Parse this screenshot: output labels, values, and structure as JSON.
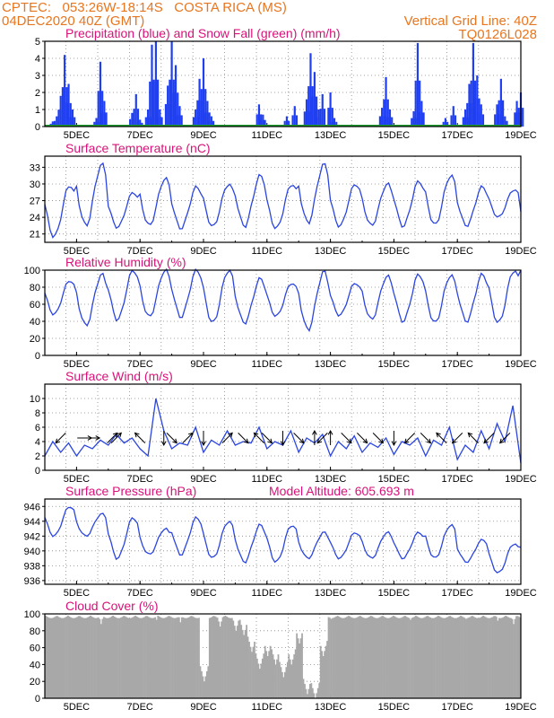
{
  "header": {
    "station_line": "CPTEC:   053:26W-18:14S   COSTA RICA (MS)",
    "date_line": "04DEC2020 40Z (GMT)",
    "grid_note": "Vertical Grid Line: 40Z",
    "code": "TQ0126L028"
  },
  "colors": {
    "header": "#e8761f",
    "titles": "#d8127a",
    "precip": "#1f3ff0",
    "snow": "#1e9e2e",
    "series": "#2b45e0",
    "cloud": "#a8a8a8",
    "wind_arrow": "#000000"
  },
  "x_axis": {
    "start": "2020-12-04 00Z",
    "end": "2020-12-19 00Z",
    "tick_labels": [
      "5DEC",
      "7DEC",
      "9DEC",
      "11DEC",
      "13DEC",
      "15DEC",
      "17DEC",
      "19DEC"
    ]
  },
  "chart_data": [
    {
      "type": "bar",
      "title": "Precipitation (blue) and Snow Fall (green) (mm/h)",
      "ylim": [
        0,
        5
      ],
      "y_ticks": [
        0,
        1,
        2,
        3,
        4,
        5
      ],
      "grid": true,
      "series": [
        {
          "name": "Precipitation",
          "points": [
            [
              "2020-12-04 06Z",
              0.3
            ],
            [
              "2020-12-04 09Z",
              0.6
            ],
            [
              "2020-12-04 12Z",
              1.8
            ],
            [
              "2020-12-04 15Z",
              4.2
            ],
            [
              "2020-12-04 18Z",
              2.5
            ],
            [
              "2020-12-04 21Z",
              1.0
            ],
            [
              "2020-12-05 15Z",
              0.5
            ],
            [
              "2020-12-05 18Z",
              3.8
            ],
            [
              "2020-12-05 21Z",
              1.5
            ],
            [
              "2020-12-06 18Z",
              0.8
            ],
            [
              "2020-12-06 21Z",
              1.9
            ],
            [
              "2020-12-07 00Z",
              0.4
            ],
            [
              "2020-12-07 06Z",
              1.0
            ],
            [
              "2020-12-07 09Z",
              4.8
            ],
            [
              "2020-12-07 12Z",
              5.0
            ],
            [
              "2020-12-07 15Z",
              1.0
            ],
            [
              "2020-12-07 21Z",
              2.4
            ],
            [
              "2020-12-08 00Z",
              5.0
            ],
            [
              "2020-12-08 03Z",
              3.6
            ],
            [
              "2020-12-08 06Z",
              1.2
            ],
            [
              "2020-12-08 18Z",
              1.0
            ],
            [
              "2020-12-08 21Z",
              2.8
            ],
            [
              "2020-12-09 00Z",
              4.0
            ],
            [
              "2020-12-09 03Z",
              1.5
            ],
            [
              "2020-12-09 06Z",
              0.6
            ],
            [
              "2020-12-10 18Z",
              1.3
            ],
            [
              "2020-12-10 21Z",
              0.7
            ],
            [
              "2020-12-11 15Z",
              0.6
            ],
            [
              "2020-12-11 21Z",
              1.2
            ],
            [
              "2020-12-12 06Z",
              1.6
            ],
            [
              "2020-12-12 09Z",
              4.3
            ],
            [
              "2020-12-12 12Z",
              3.2
            ],
            [
              "2020-12-12 15Z",
              1.0
            ],
            [
              "2020-12-12 18Z",
              1.9
            ],
            [
              "2020-12-13 00Z",
              2.0
            ],
            [
              "2020-12-13 03Z",
              0.5
            ],
            [
              "2020-12-14 15Z",
              1.1
            ],
            [
              "2020-12-14 18Z",
              2.9
            ],
            [
              "2020-12-14 21Z",
              1.0
            ],
            [
              "2020-12-15 15Z",
              0.9
            ],
            [
              "2020-12-15 18Z",
              4.9
            ],
            [
              "2020-12-15 21Z",
              1.5
            ],
            [
              "2020-12-16 15Z",
              0.5
            ],
            [
              "2020-12-16 21Z",
              1.2
            ],
            [
              "2020-12-17 06Z",
              1.0
            ],
            [
              "2020-12-17 09Z",
              2.5
            ],
            [
              "2020-12-17 12Z",
              4.9
            ],
            [
              "2020-12-17 15Z",
              3.0
            ],
            [
              "2020-12-17 18Z",
              1.3
            ],
            [
              "2020-12-18 06Z",
              1.3
            ],
            [
              "2020-12-18 09Z",
              2.8
            ],
            [
              "2020-12-18 12Z",
              0.6
            ],
            [
              "2020-12-18 21Z",
              1.5
            ],
            [
              "2020-12-19 00Z",
              2.0
            ]
          ]
        },
        {
          "name": "Snow Fall",
          "constant": 0
        }
      ]
    },
    {
      "type": "line",
      "title": "Surface Temperature (nC)",
      "ylim": [
        19.5,
        35
      ],
      "y_ticks": [
        21,
        24,
        27,
        30,
        33
      ],
      "grid": true,
      "daily_min": [
        20.5,
        22.5,
        22.2,
        22.5,
        22.0,
        22.3,
        22.4,
        22.0,
        23.0,
        22.4,
        22.5,
        22.4,
        22.6,
        22.5,
        24.0
      ],
      "daily_max": [
        29.8,
        33.5,
        28.5,
        31.0,
        29.5,
        30.0,
        31.5,
        30.0,
        33.5,
        30.0,
        30.0,
        30.5,
        31.5,
        29.5,
        29.0
      ],
      "end_value": 25.0
    },
    {
      "type": "line",
      "title": "Relative Humidity (%)",
      "ylim": [
        0,
        100
      ],
      "y_ticks": [
        0,
        20,
        40,
        60,
        80,
        100
      ],
      "grid": true,
      "daily_min": [
        48,
        35,
        42,
        45,
        45,
        38,
        38,
        46,
        30,
        47,
        42,
        40,
        38,
        40,
        38
      ],
      "daily_max": [
        88,
        95,
        100,
        100,
        100,
        100,
        90,
        85,
        98,
        85,
        93,
        95,
        94,
        95,
        100
      ],
      "end_value": 100
    },
    {
      "type": "line",
      "title": "Surface Wind (m/s)",
      "ylim": [
        0,
        12
      ],
      "y_ticks": [
        0,
        2,
        4,
        6,
        8,
        10
      ],
      "grid": true,
      "points": [
        [
          "2020-12-04 00Z",
          2.0
        ],
        [
          "2020-12-04 06Z",
          4.0
        ],
        [
          "2020-12-04 12Z",
          2.5
        ],
        [
          "2020-12-04 18Z",
          3.8
        ],
        [
          "2020-12-05 00Z",
          2.0
        ],
        [
          "2020-12-05 06Z",
          3.5
        ],
        [
          "2020-12-05 12Z",
          3.0
        ],
        [
          "2020-12-05 18Z",
          4.2
        ],
        [
          "2020-12-06 00Z",
          3.5
        ],
        [
          "2020-12-06 06Z",
          5.0
        ],
        [
          "2020-12-06 12Z",
          3.8
        ],
        [
          "2020-12-06 18Z",
          4.5
        ],
        [
          "2020-12-07 00Z",
          3.0
        ],
        [
          "2020-12-07 06Z",
          2.0
        ],
        [
          "2020-12-07 09Z",
          6.0
        ],
        [
          "2020-12-07 12Z",
          10.0
        ],
        [
          "2020-12-07 18Z",
          5.5
        ],
        [
          "2020-12-08 00Z",
          3.0
        ],
        [
          "2020-12-08 06Z",
          3.8
        ],
        [
          "2020-12-08 12Z",
          3.5
        ],
        [
          "2020-12-08 18Z",
          6.0
        ],
        [
          "2020-12-09 00Z",
          2.5
        ],
        [
          "2020-12-09 06Z",
          4.2
        ],
        [
          "2020-12-09 12Z",
          3.5
        ],
        [
          "2020-12-09 18Z",
          5.5
        ],
        [
          "2020-12-10 00Z",
          3.5
        ],
        [
          "2020-12-10 06Z",
          4.0
        ],
        [
          "2020-12-10 12Z",
          3.8
        ],
        [
          "2020-12-10 18Z",
          6.0
        ],
        [
          "2020-12-11 00Z",
          3.0
        ],
        [
          "2020-12-11 06Z",
          4.0
        ],
        [
          "2020-12-11 12Z",
          3.5
        ],
        [
          "2020-12-11 18Z",
          5.5
        ],
        [
          "2020-12-12 00Z",
          2.5
        ],
        [
          "2020-12-12 06Z",
          4.5
        ],
        [
          "2020-12-12 12Z",
          3.8
        ],
        [
          "2020-12-12 18Z",
          5.0
        ],
        [
          "2020-12-13 00Z",
          2.0
        ],
        [
          "2020-12-13 06Z",
          4.0
        ],
        [
          "2020-12-13 12Z",
          3.0
        ],
        [
          "2020-12-13 18Z",
          4.8
        ],
        [
          "2020-12-14 00Z",
          2.5
        ],
        [
          "2020-12-14 06Z",
          3.8
        ],
        [
          "2020-12-14 12Z",
          3.2
        ],
        [
          "2020-12-14 18Z",
          4.5
        ],
        [
          "2020-12-15 00Z",
          2.2
        ],
        [
          "2020-12-15 06Z",
          4.0
        ],
        [
          "2020-12-15 12Z",
          3.5
        ],
        [
          "2020-12-15 18Z",
          4.5
        ],
        [
          "2020-12-16 00Z",
          2.0
        ],
        [
          "2020-12-16 06Z",
          4.2
        ],
        [
          "2020-12-16 12Z",
          3.5
        ],
        [
          "2020-12-16 18Z",
          6.0
        ],
        [
          "2020-12-17 00Z",
          1.5
        ],
        [
          "2020-12-17 06Z",
          3.5
        ],
        [
          "2020-12-17 12Z",
          2.5
        ],
        [
          "2020-12-17 18Z",
          5.5
        ],
        [
          "2020-12-18 00Z",
          3.0
        ],
        [
          "2020-12-18 06Z",
          6.5
        ],
        [
          "2020-12-18 12Z",
          4.0
        ],
        [
          "2020-12-18 18Z",
          9.0
        ],
        [
          "2020-12-19 00Z",
          1.0
        ]
      ],
      "arrows": [
        [
          "2020-12-04 12Z",
          "sw"
        ],
        [
          "2020-12-05 06Z",
          "e"
        ],
        [
          "2020-12-05 12Z",
          "e"
        ],
        [
          "2020-12-06 03Z",
          "ne"
        ],
        [
          "2020-12-06 06Z",
          "ne"
        ],
        [
          "2020-12-07 00Z",
          "nw"
        ],
        [
          "2020-12-07 18Z",
          "s"
        ],
        [
          "2020-12-08 00Z",
          "se"
        ],
        [
          "2020-12-08 12Z",
          "ne"
        ],
        [
          "2020-12-09 00Z",
          "s"
        ],
        [
          "2020-12-09 18Z",
          "ne"
        ],
        [
          "2020-12-10 06Z",
          "se"
        ],
        [
          "2020-12-10 18Z",
          "nw"
        ],
        [
          "2020-12-11 00Z",
          "se"
        ],
        [
          "2020-12-11 12Z",
          "s"
        ],
        [
          "2020-12-12 00Z",
          "se"
        ],
        [
          "2020-12-12 12Z",
          "n"
        ],
        [
          "2020-12-12 18Z",
          "sw"
        ],
        [
          "2020-12-13 00Z",
          "n"
        ],
        [
          "2020-12-13 12Z",
          "se"
        ],
        [
          "2020-12-14 00Z",
          "se"
        ],
        [
          "2020-12-14 12Z",
          "se"
        ],
        [
          "2020-12-15 00Z",
          "s"
        ],
        [
          "2020-12-15 12Z",
          "sw"
        ],
        [
          "2020-12-16 00Z",
          "se"
        ],
        [
          "2020-12-16 12Z",
          "nw"
        ],
        [
          "2020-12-17 00Z",
          "sw"
        ],
        [
          "2020-12-17 12Z",
          "nw"
        ],
        [
          "2020-12-18 00Z",
          "sw"
        ],
        [
          "2020-12-18 12Z",
          "sw"
        ]
      ]
    },
    {
      "type": "line",
      "title": "Surface Pressure (hPa)",
      "annotation": "Model Altitude: 605.693 m",
      "ylim": [
        935.5,
        947
      ],
      "y_ticks": [
        936,
        938,
        940,
        942,
        944,
        946
      ],
      "grid": true,
      "daily_min": [
        942.0,
        942.0,
        939.0,
        939.5,
        939.5,
        939.0,
        938.5,
        938.5,
        939.0,
        939.0,
        939.0,
        939.0,
        939.0,
        938.5,
        937.0
      ],
      "daily_max": [
        946.0,
        945.0,
        944.5,
        943.0,
        944.5,
        944.0,
        943.5,
        943.5,
        942.5,
        942.5,
        942.5,
        942.5,
        943.5,
        941.5,
        941.0
      ],
      "end_value": 940.5
    },
    {
      "type": "bar",
      "title": "Cloud Cover (%)",
      "ylim": [
        0,
        100
      ],
      "y_ticks": [
        0,
        20,
        40,
        60,
        80,
        100
      ],
      "grid": true,
      "base_value": 98,
      "dips": [
        [
          "2020-12-05 18Z",
          88
        ],
        [
          "2020-12-07 12Z",
          93
        ],
        [
          "2020-12-08 06Z",
          90
        ],
        [
          "2020-12-09 00Z",
          20
        ],
        [
          "2020-12-09 12Z",
          85
        ],
        [
          "2020-12-10 00Z",
          80
        ],
        [
          "2020-12-10 06Z",
          75
        ],
        [
          "2020-12-10 12Z",
          55
        ],
        [
          "2020-12-10 18Z",
          35
        ],
        [
          "2020-12-11 00Z",
          50
        ],
        [
          "2020-12-11 06Z",
          40
        ],
        [
          "2020-12-11 12Z",
          25
        ],
        [
          "2020-12-11 18Z",
          40
        ],
        [
          "2020-12-12 00Z",
          65
        ],
        [
          "2020-12-12 06Z",
          5
        ],
        [
          "2020-12-12 12Z",
          0
        ],
        [
          "2020-12-12 18Z",
          50
        ],
        [
          "2020-12-13 00Z",
          94
        ],
        [
          "2020-12-15 12Z",
          93
        ],
        [
          "2020-12-17 06Z",
          94
        ],
        [
          "2020-12-18 06Z",
          92
        ],
        [
          "2020-12-18 18Z",
          88
        ]
      ]
    }
  ]
}
